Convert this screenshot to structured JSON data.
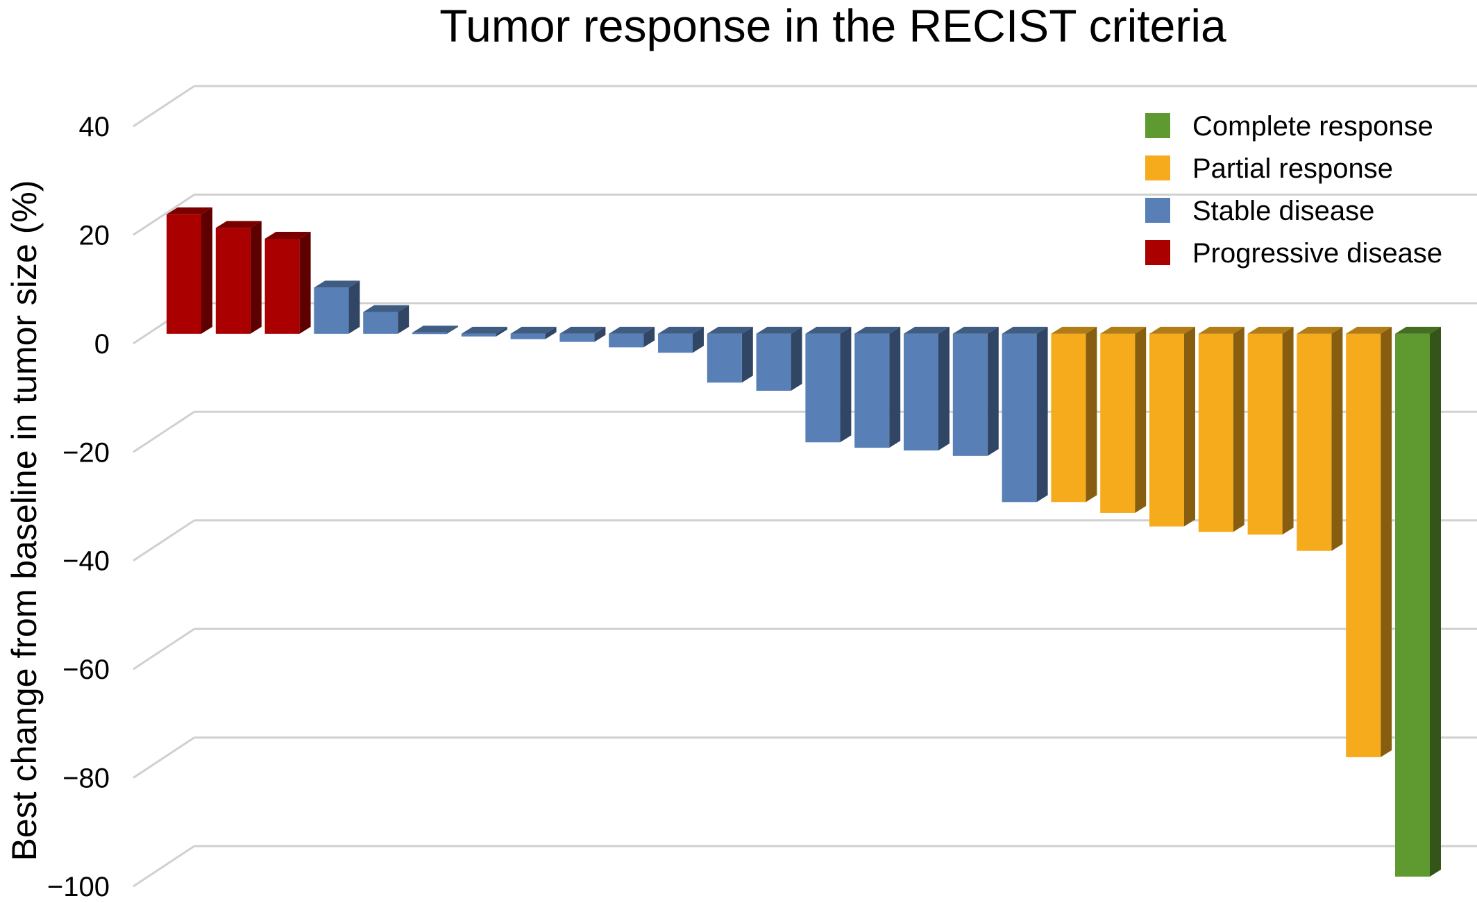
{
  "chart_data": {
    "type": "bar",
    "title": "Tumor response in the RECIST criteria",
    "xlabel": "",
    "ylabel": "Best change from baseline in tumor size (%)",
    "ylim": [
      -100,
      40
    ],
    "yticks": [
      "40",
      "20",
      "0",
      "−20",
      "−40",
      "−60",
      "−80",
      "−100"
    ],
    "ytick_values": [
      40,
      20,
      0,
      -20,
      -40,
      -60,
      -80,
      -100
    ],
    "grid": true,
    "style": "3d",
    "legend_position": "top-right",
    "legend": [
      {
        "name": "Complete response",
        "color": "#5f9a30"
      },
      {
        "name": "Partial response",
        "color": "#f6ab1d"
      },
      {
        "name": "Stable disease",
        "color": "#5880b6"
      },
      {
        "name": "Progressive disease",
        "color": "#aa0000"
      }
    ],
    "bars": [
      {
        "value": 22,
        "category": "Progressive disease"
      },
      {
        "value": 19.5,
        "category": "Progressive disease"
      },
      {
        "value": 17.5,
        "category": "Progressive disease"
      },
      {
        "value": 8.5,
        "category": "Stable disease"
      },
      {
        "value": 4,
        "category": "Stable disease"
      },
      {
        "value": 0.2,
        "category": "Stable disease"
      },
      {
        "value": -0.5,
        "category": "Stable disease"
      },
      {
        "value": -1,
        "category": "Stable disease"
      },
      {
        "value": -1.5,
        "category": "Stable disease"
      },
      {
        "value": -2.5,
        "category": "Stable disease"
      },
      {
        "value": -3.5,
        "category": "Stable disease"
      },
      {
        "value": -9,
        "category": "Stable disease"
      },
      {
        "value": -10.5,
        "category": "Stable disease"
      },
      {
        "value": -20,
        "category": "Stable disease"
      },
      {
        "value": -21,
        "category": "Stable disease"
      },
      {
        "value": -21.5,
        "category": "Stable disease"
      },
      {
        "value": -22.5,
        "category": "Stable disease"
      },
      {
        "value": -31,
        "category": "Stable disease"
      },
      {
        "value": -31,
        "category": "Partial response"
      },
      {
        "value": -33,
        "category": "Partial response"
      },
      {
        "value": -35.5,
        "category": "Partial response"
      },
      {
        "value": -36.5,
        "category": "Partial response"
      },
      {
        "value": -37,
        "category": "Partial response"
      },
      {
        "value": -40,
        "category": "Partial response"
      },
      {
        "value": -78,
        "category": "Partial response"
      },
      {
        "value": -100,
        "category": "Complete response"
      }
    ]
  }
}
